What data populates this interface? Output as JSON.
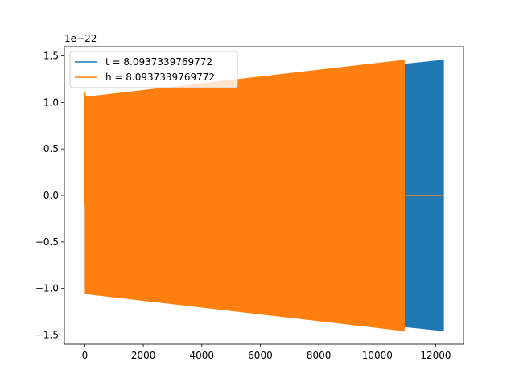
{
  "chart_data": {
    "type": "line",
    "title": "",
    "xlabel": "",
    "ylabel": "",
    "xlim": [
      -700,
      12950
    ],
    "ylim": [
      -1.6,
      1.6
    ],
    "y_offset_label": "1e−22",
    "x_ticks": [
      0,
      2000,
      4000,
      6000,
      8000,
      10000,
      12000
    ],
    "x_tick_labels": [
      "0",
      "2000",
      "4000",
      "6000",
      "8000",
      "10000",
      "12000"
    ],
    "y_ticks": [
      -1.5,
      -1.0,
      -0.5,
      0.0,
      0.5,
      1.0,
      1.5
    ],
    "y_tick_labels": [
      "−1.5",
      "−1.0",
      "−0.5",
      "0.0",
      "0.5",
      "1.0",
      "1.5"
    ],
    "grid": false,
    "legend_position": "top-left",
    "series": [
      {
        "name": "t = 8.0937339769772",
        "color": "#1f77b4",
        "kind": "oscillation-envelope",
        "x_start": 0,
        "x_end": 12280,
        "amplitude_start": 1.06,
        "amplitude_end": 1.46,
        "tail_to": 12280
      },
      {
        "name": "h = 8.0937339769772",
        "color": "#ff7f0e",
        "kind": "oscillation-envelope",
        "x_start": 0,
        "x_end": 10940,
        "amplitude_start": 1.06,
        "amplitude_end": 1.46,
        "tail_to": 12280
      }
    ]
  }
}
